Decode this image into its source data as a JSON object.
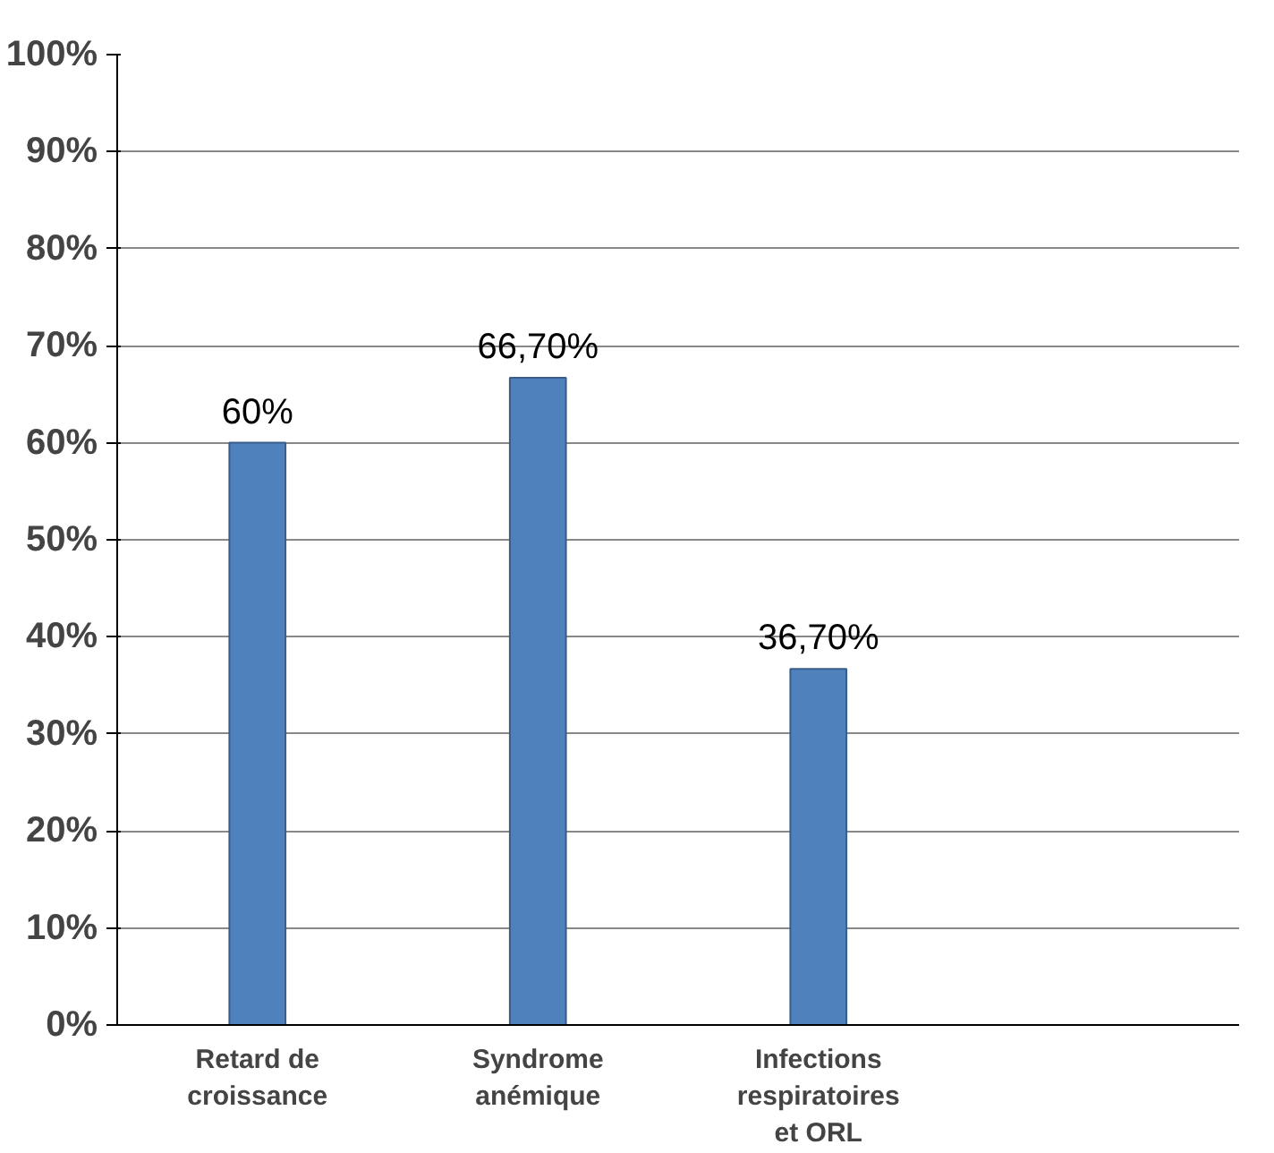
{
  "chart_data": {
    "type": "bar",
    "categories": [
      "Retard de croissance",
      "Syndrome anémique",
      "Infections respiratoires et ORL",
      null
    ],
    "values": [
      60,
      66.7,
      36.7,
      null
    ],
    "value_labels": [
      "60%",
      "66,70%",
      "36,70%",
      null
    ],
    "color": "#4f81bd",
    "ylim": [
      0,
      100
    ],
    "yticks": [
      {
        "value": 0,
        "label": "0%"
      },
      {
        "value": 10,
        "label": "10%"
      },
      {
        "value": 20,
        "label": "20%"
      },
      {
        "value": 30,
        "label": "30%"
      },
      {
        "value": 40,
        "label": "40%"
      },
      {
        "value": 50,
        "label": "50%"
      },
      {
        "value": 60,
        "label": "60%"
      },
      {
        "value": 70,
        "label": "70%"
      },
      {
        "value": 80,
        "label": "80%"
      },
      {
        "value": 90,
        "label": "90%"
      },
      {
        "value": 100,
        "label": "100%"
      }
    ],
    "grid": "y"
  }
}
